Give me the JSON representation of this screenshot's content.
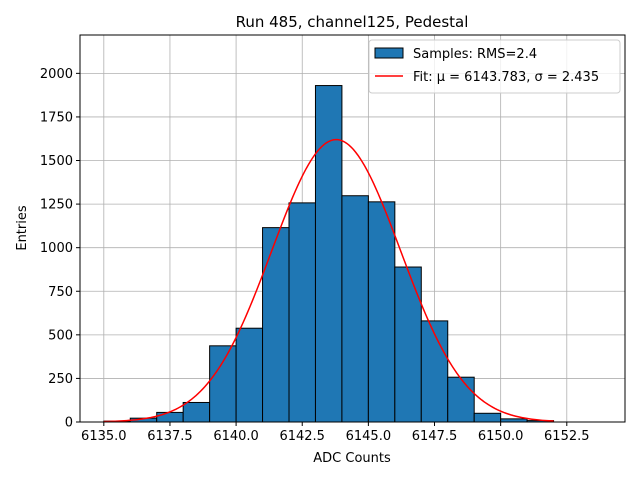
{
  "chart_data": {
    "type": "bar",
    "title": "Run 485, channel125, Pedestal",
    "xlabel": "ADC Counts",
    "ylabel": "Entries",
    "xlim": [
      6134.1,
      6154.7
    ],
    "ylim": [
      0,
      2220
    ],
    "xticks": [
      6135.0,
      6137.5,
      6140.0,
      6142.5,
      6145.0,
      6147.5,
      6150.0,
      6152.5
    ],
    "xtick_labels": [
      "6135.0",
      "6137.5",
      "6140.0",
      "6142.5",
      "6145.0",
      "6147.5",
      "6150.0",
      "6152.5"
    ],
    "yticks": [
      0,
      250,
      500,
      750,
      1000,
      1250,
      1500,
      1750,
      2000
    ],
    "ytick_labels": [
      "0",
      "250",
      "500",
      "750",
      "1000",
      "1250",
      "1500",
      "1750",
      "2000"
    ],
    "grid": true,
    "legend_position": "top-right",
    "bins": [
      {
        "start": 6135,
        "end": 6136,
        "value": 5
      },
      {
        "start": 6136,
        "end": 6137,
        "value": 22
      },
      {
        "start": 6137,
        "end": 6138,
        "value": 55
      },
      {
        "start": 6138,
        "end": 6139,
        "value": 112
      },
      {
        "start": 6139,
        "end": 6140,
        "value": 437
      },
      {
        "start": 6140,
        "end": 6141,
        "value": 538
      },
      {
        "start": 6141,
        "end": 6142,
        "value": 1115
      },
      {
        "start": 6142,
        "end": 6143,
        "value": 1257
      },
      {
        "start": 6143,
        "end": 6144,
        "value": 1930
      },
      {
        "start": 6144,
        "end": 6145,
        "value": 1298
      },
      {
        "start": 6145,
        "end": 6146,
        "value": 1263
      },
      {
        "start": 6146,
        "end": 6147,
        "value": 889
      },
      {
        "start": 6147,
        "end": 6148,
        "value": 580
      },
      {
        "start": 6148,
        "end": 6149,
        "value": 257
      },
      {
        "start": 6149,
        "end": 6150,
        "value": 50
      },
      {
        "start": 6150,
        "end": 6151,
        "value": 18
      },
      {
        "start": 6151,
        "end": 6152,
        "value": 8
      }
    ],
    "fit": {
      "mu": 6143.783,
      "sigma": 2.435,
      "amplitude": 1620,
      "x_range": [
        6135,
        6152
      ]
    },
    "legend": [
      {
        "label": "Samples: RMS=2.4",
        "color": "#1f77b4",
        "kind": "patch"
      },
      {
        "label": "Fit: μ = 6143.783, σ = 2.435",
        "color": "#ff0000",
        "kind": "line"
      }
    ]
  }
}
